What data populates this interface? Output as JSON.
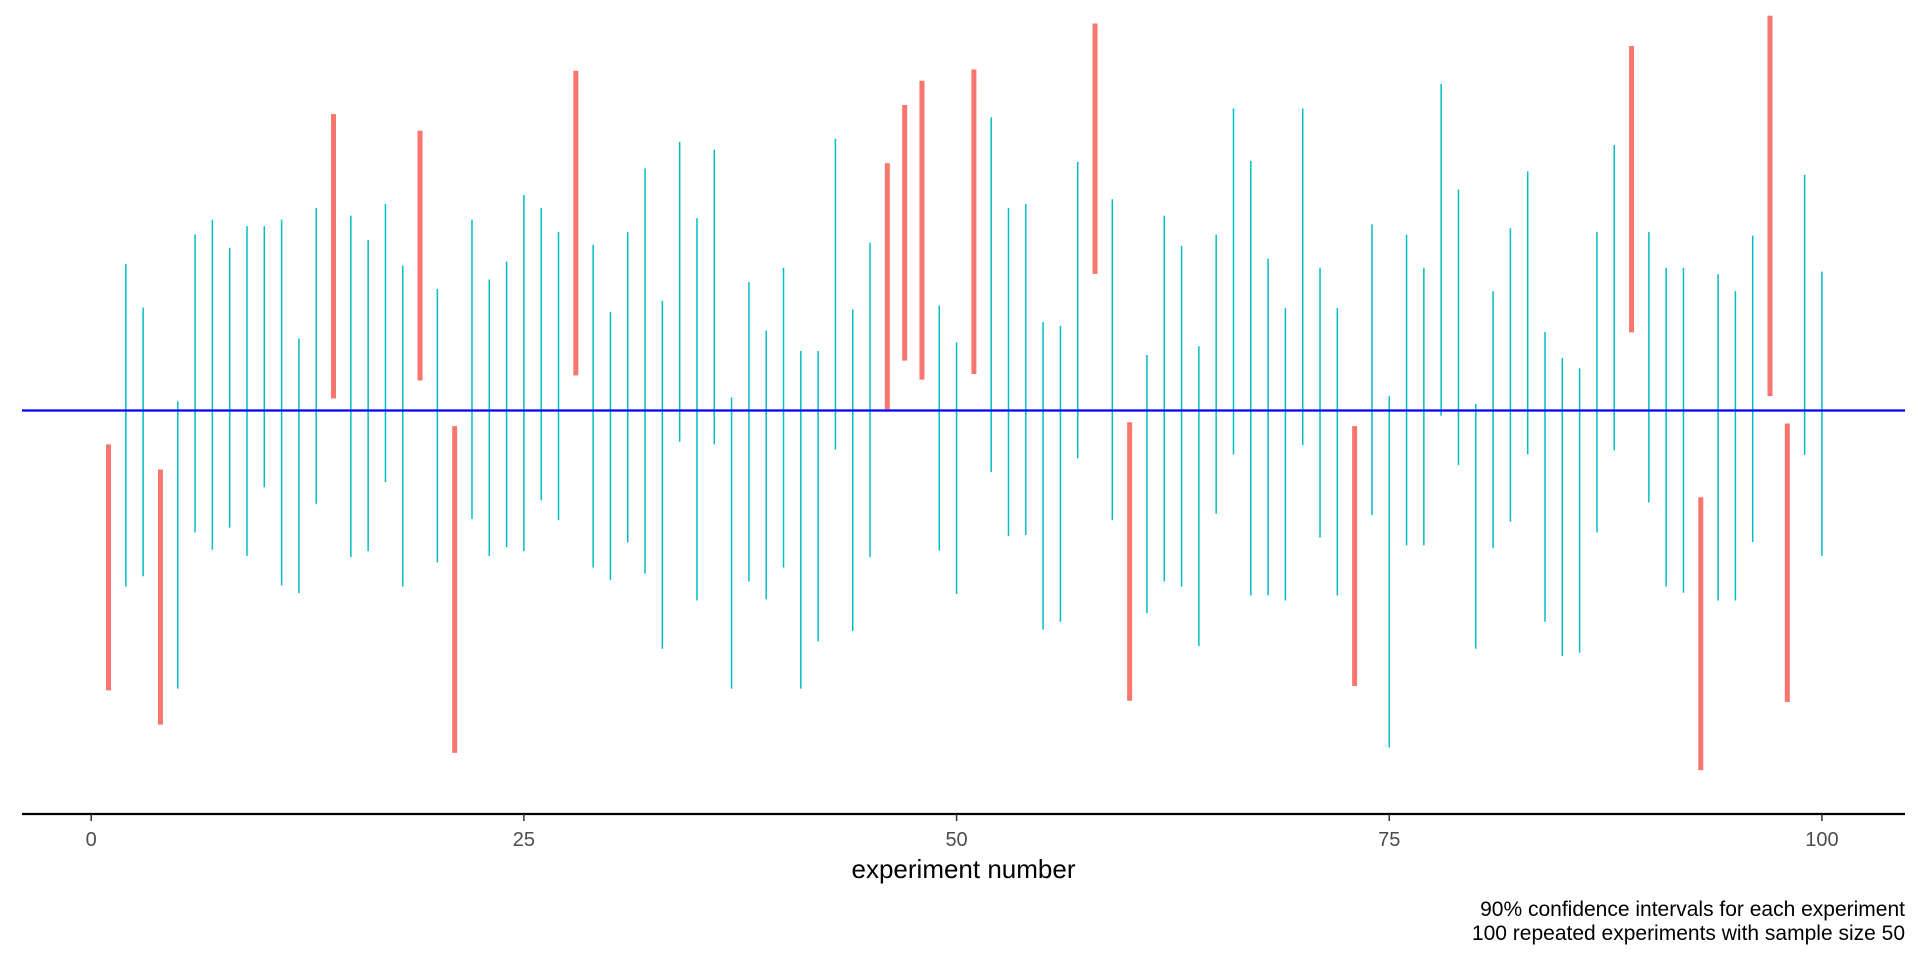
{
  "chart_data": {
    "type": "errorbar",
    "xlabel": "experiment number",
    "ylabel": "",
    "caption_lines": [
      "90% confidence intervals for each experiment",
      "100 repeated experiments with sample size 50"
    ],
    "x_ticks": [
      0,
      25,
      50,
      75,
      100
    ],
    "xlim": [
      -4,
      104.8
    ],
    "ylim": [
      -0.93,
      0.9
    ],
    "true_value": 0,
    "grid": false,
    "legend": "none",
    "colors": {
      "covers_true_value": "#00bfc4",
      "misses_true_value": "#f8766d",
      "reference_line": "#0000ff",
      "axis": "#000000"
    },
    "intervals": [
      {
        "x": 1,
        "lo": -0.645,
        "hi": -0.078
      },
      {
        "x": 2,
        "lo": -0.406,
        "hi": 0.338
      },
      {
        "x": 3,
        "lo": -0.382,
        "hi": 0.237
      },
      {
        "x": 4,
        "lo": -0.724,
        "hi": -0.136
      },
      {
        "x": 5,
        "lo": -0.641,
        "hi": 0.021
      },
      {
        "x": 6,
        "lo": -0.281,
        "hi": 0.406
      },
      {
        "x": 7,
        "lo": -0.321,
        "hi": 0.44
      },
      {
        "x": 8,
        "lo": -0.27,
        "hi": 0.375
      },
      {
        "x": 9,
        "lo": -0.335,
        "hi": 0.425
      },
      {
        "x": 10,
        "lo": -0.177,
        "hi": 0.425
      },
      {
        "x": 11,
        "lo": -0.403,
        "hi": 0.44
      },
      {
        "x": 12,
        "lo": -0.421,
        "hi": 0.166
      },
      {
        "x": 13,
        "lo": -0.215,
        "hi": 0.467
      },
      {
        "x": 14,
        "lo": 0.028,
        "hi": 0.683
      },
      {
        "x": 15,
        "lo": -0.338,
        "hi": 0.449
      },
      {
        "x": 16,
        "lo": -0.324,
        "hi": 0.393
      },
      {
        "x": 17,
        "lo": -0.165,
        "hi": 0.476
      },
      {
        "x": 18,
        "lo": -0.406,
        "hi": 0.334
      },
      {
        "x": 19,
        "lo": 0.069,
        "hi": 0.645
      },
      {
        "x": 20,
        "lo": -0.35,
        "hi": 0.28
      },
      {
        "x": 21,
        "lo": -0.789,
        "hi": -0.036
      },
      {
        "x": 22,
        "lo": -0.25,
        "hi": 0.44
      },
      {
        "x": 23,
        "lo": -0.335,
        "hi": 0.302
      },
      {
        "x": 24,
        "lo": -0.315,
        "hi": 0.343
      },
      {
        "x": 25,
        "lo": -0.324,
        "hi": 0.497
      },
      {
        "x": 26,
        "lo": -0.207,
        "hi": 0.467
      },
      {
        "x": 27,
        "lo": -0.253,
        "hi": 0.411
      },
      {
        "x": 28,
        "lo": 0.081,
        "hi": 0.783
      },
      {
        "x": 29,
        "lo": -0.362,
        "hi": 0.382
      },
      {
        "x": 30,
        "lo": -0.391,
        "hi": 0.227
      },
      {
        "x": 31,
        "lo": -0.304,
        "hi": 0.411
      },
      {
        "x": 32,
        "lo": -0.376,
        "hi": 0.558
      },
      {
        "x": 33,
        "lo": -0.549,
        "hi": 0.253
      },
      {
        "x": 34,
        "lo": -0.072,
        "hi": 0.619
      },
      {
        "x": 35,
        "lo": -0.438,
        "hi": 0.443
      },
      {
        "x": 36,
        "lo": -0.078,
        "hi": 0.601
      },
      {
        "x": 37,
        "lo": -0.641,
        "hi": 0.03
      },
      {
        "x": 38,
        "lo": -0.394,
        "hi": 0.296
      },
      {
        "x": 39,
        "lo": -0.435,
        "hi": 0.184
      },
      {
        "x": 40,
        "lo": -0.362,
        "hi": 0.329
      },
      {
        "x": 41,
        "lo": -0.641,
        "hi": 0.137
      },
      {
        "x": 42,
        "lo": -0.532,
        "hi": 0.137
      },
      {
        "x": 43,
        "lo": -0.09,
        "hi": 0.626
      },
      {
        "x": 44,
        "lo": -0.508,
        "hi": 0.233
      },
      {
        "x": 45,
        "lo": -0.338,
        "hi": 0.387
      },
      {
        "x": 46,
        "lo": 0.003,
        "hi": 0.57
      },
      {
        "x": 47,
        "lo": 0.115,
        "hi": 0.704
      },
      {
        "x": 48,
        "lo": 0.071,
        "hi": 0.76
      },
      {
        "x": 49,
        "lo": -0.323,
        "hi": 0.242
      },
      {
        "x": 50,
        "lo": -0.423,
        "hi": 0.157
      },
      {
        "x": 51,
        "lo": 0.084,
        "hi": 0.786
      },
      {
        "x": 52,
        "lo": -0.142,
        "hi": 0.676
      },
      {
        "x": 53,
        "lo": -0.289,
        "hi": 0.467
      },
      {
        "x": 54,
        "lo": -0.287,
        "hi": 0.476
      },
      {
        "x": 55,
        "lo": -0.505,
        "hi": 0.204
      },
      {
        "x": 56,
        "lo": -0.487,
        "hi": 0.195
      },
      {
        "x": 57,
        "lo": -0.11,
        "hi": 0.573
      },
      {
        "x": 58,
        "lo": 0.315,
        "hi": 0.892
      },
      {
        "x": 59,
        "lo": -0.253,
        "hi": 0.487
      },
      {
        "x": 60,
        "lo": -0.669,
        "hi": -0.027
      },
      {
        "x": 61,
        "lo": -0.467,
        "hi": 0.128
      },
      {
        "x": 62,
        "lo": -0.394,
        "hi": 0.449
      },
      {
        "x": 63,
        "lo": -0.406,
        "hi": 0.379
      },
      {
        "x": 64,
        "lo": -0.543,
        "hi": 0.148
      },
      {
        "x": 65,
        "lo": -0.238,
        "hi": 0.405
      },
      {
        "x": 66,
        "lo": -0.101,
        "hi": 0.696
      },
      {
        "x": 67,
        "lo": -0.426,
        "hi": 0.575
      },
      {
        "x": 68,
        "lo": -0.426,
        "hi": 0.35
      },
      {
        "x": 69,
        "lo": -0.438,
        "hi": 0.236
      },
      {
        "x": 70,
        "lo": -0.08,
        "hi": 0.696
      },
      {
        "x": 71,
        "lo": -0.293,
        "hi": 0.329
      },
      {
        "x": 72,
        "lo": -0.426,
        "hi": 0.236
      },
      {
        "x": 73,
        "lo": -0.635,
        "hi": -0.036
      },
      {
        "x": 74,
        "lo": -0.241,
        "hi": 0.429
      },
      {
        "x": 75,
        "lo": -0.777,
        "hi": 0.033
      },
      {
        "x": 76,
        "lo": -0.311,
        "hi": 0.405
      },
      {
        "x": 77,
        "lo": -0.311,
        "hi": 0.329
      },
      {
        "x": 78,
        "lo": -0.012,
        "hi": 0.753
      },
      {
        "x": 79,
        "lo": -0.126,
        "hi": 0.509
      },
      {
        "x": 80,
        "lo": -0.549,
        "hi": 0.015
      },
      {
        "x": 81,
        "lo": -0.317,
        "hi": 0.275
      },
      {
        "x": 82,
        "lo": -0.256,
        "hi": 0.42
      },
      {
        "x": 83,
        "lo": -0.101,
        "hi": 0.551
      },
      {
        "x": 84,
        "lo": -0.487,
        "hi": 0.181
      },
      {
        "x": 85,
        "lo": -0.566,
        "hi": 0.121
      },
      {
        "x": 86,
        "lo": -0.558,
        "hi": 0.097
      },
      {
        "x": 87,
        "lo": -0.281,
        "hi": 0.411
      },
      {
        "x": 88,
        "lo": -0.092,
        "hi": 0.612
      },
      {
        "x": 89,
        "lo": 0.18,
        "hi": 0.84
      },
      {
        "x": 90,
        "lo": -0.212,
        "hi": 0.411
      },
      {
        "x": 91,
        "lo": -0.406,
        "hi": 0.329
      },
      {
        "x": 92,
        "lo": -0.42,
        "hi": 0.329
      },
      {
        "x": 93,
        "lo": -0.829,
        "hi": -0.2
      },
      {
        "x": 94,
        "lo": -0.438,
        "hi": 0.314
      },
      {
        "x": 95,
        "lo": -0.438,
        "hi": 0.275
      },
      {
        "x": 96,
        "lo": -0.303,
        "hi": 0.403
      },
      {
        "x": 97,
        "lo": 0.033,
        "hi": 0.91
      },
      {
        "x": 98,
        "lo": -0.672,
        "hi": -0.03
      },
      {
        "x": 99,
        "lo": -0.102,
        "hi": 0.543
      },
      {
        "x": 100,
        "lo": -0.335,
        "hi": 0.32
      }
    ]
  }
}
